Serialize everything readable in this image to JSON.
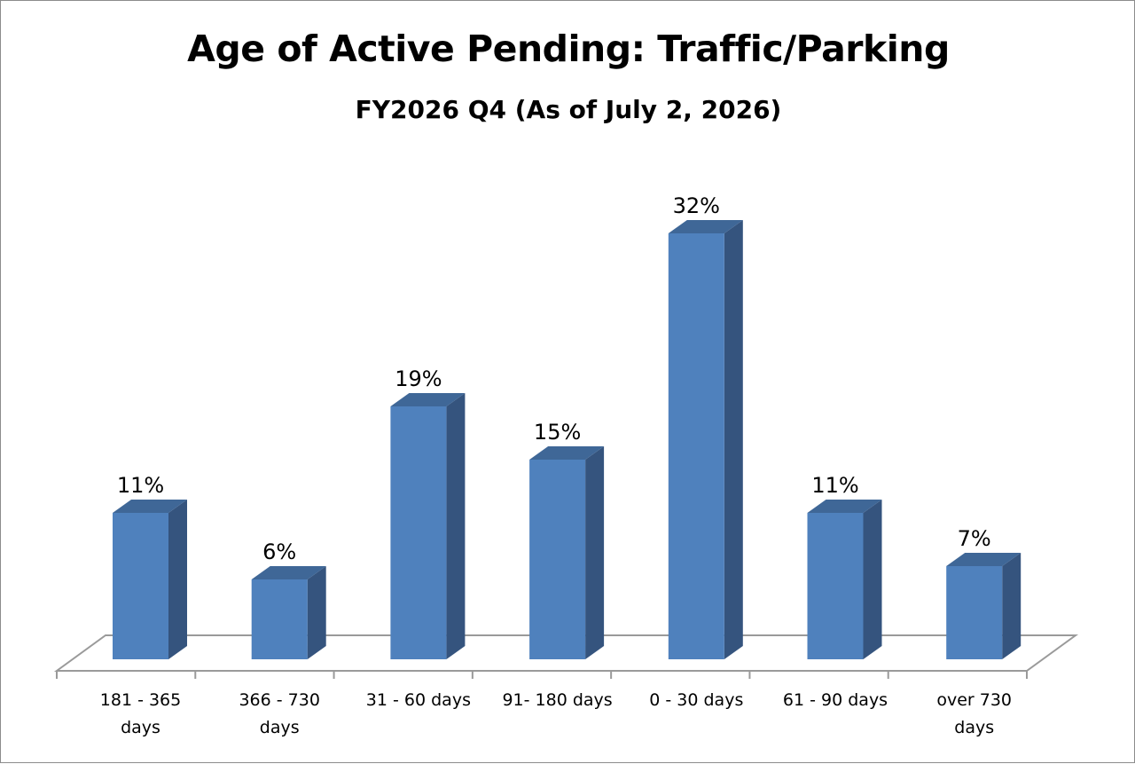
{
  "chart_data": {
    "type": "bar",
    "title": "Age of Active Pending: Traffic/Parking",
    "subtitle": "FY2026 Q4 (As of July 2, 2026)",
    "categories": [
      [
        "181 - 365",
        "days"
      ],
      [
        "366 - 730",
        "days"
      ],
      [
        "31 - 60 days"
      ],
      [
        "91- 180 days"
      ],
      [
        "0 - 30 days"
      ],
      [
        "61 - 90 days"
      ],
      [
        "over 730",
        "days"
      ]
    ],
    "values": [
      11,
      6,
      19,
      15,
      32,
      11,
      7
    ],
    "data_labels": [
      "11%",
      "6%",
      "19%",
      "15%",
      "32%",
      "11%",
      "7%"
    ],
    "unit": "%",
    "ylim": [
      0,
      35
    ],
    "grid": false,
    "legend": "none",
    "style": "3d-column",
    "colors": {
      "front": "#4f81bd",
      "side": "#35547e",
      "top": "#3f6797"
    }
  }
}
